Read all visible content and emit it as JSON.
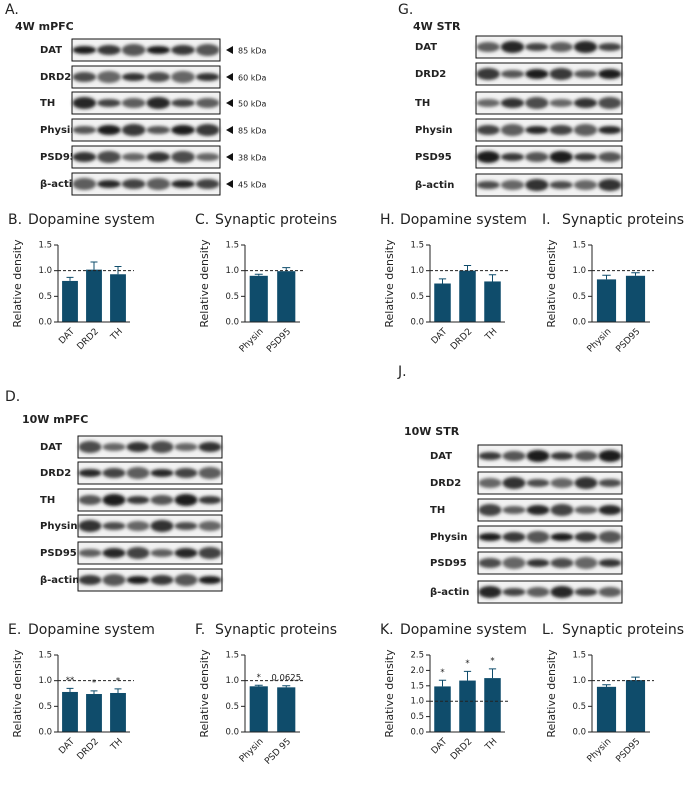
{
  "blots": [
    {
      "panel": "A.",
      "title": "4W mPFC",
      "rows": [
        {
          "label": "DAT",
          "size": "85 kDa"
        },
        {
          "label": "DRD2",
          "size": "60 kDa"
        },
        {
          "label": "TH",
          "size": "50 kDa"
        },
        {
          "label": "Physin",
          "size": "85 kDa"
        },
        {
          "label": "PSD95",
          "size": "38 kDa"
        },
        {
          "label": "β-actin",
          "size": "45 kDa"
        }
      ]
    },
    {
      "panel": "G.",
      "title": "4W STR",
      "rows": [
        {
          "label": "DAT"
        },
        {
          "label": "DRD2"
        },
        {
          "label": "TH"
        },
        {
          "label": "Physin"
        },
        {
          "label": "PSD95"
        },
        {
          "label": "β-actin"
        }
      ]
    },
    {
      "panel": "D.",
      "title": "10W mPFC",
      "rows": [
        {
          "label": "DAT"
        },
        {
          "label": "DRD2"
        },
        {
          "label": "TH"
        },
        {
          "label": "Physin"
        },
        {
          "label": "PSD95"
        },
        {
          "label": "β-actin"
        }
      ]
    },
    {
      "panel": "J.",
      "title": "10W STR",
      "rows": [
        {
          "label": "DAT"
        },
        {
          "label": "DRD2"
        },
        {
          "label": "TH"
        },
        {
          "label": "Physin"
        },
        {
          "label": "PSD95"
        },
        {
          "label": "β-actin"
        }
      ]
    }
  ],
  "chart_data": [
    {
      "type": "bar",
      "panel": "B.",
      "title": "Dopamine system",
      "y_label": "Relative density",
      "color": "#0f4c6b",
      "categories": [
        "DAT",
        "DRD2",
        "TH"
      ],
      "values": [
        0.8,
        1.02,
        0.93
      ],
      "errors": [
        0.07,
        0.15,
        0.15
      ],
      "reference_line": 1,
      "ylim": [
        0,
        1.5
      ],
      "yticks": [
        {
          "value": 0,
          "label": "0.0"
        },
        {
          "value": 0.5,
          "label": "0.5"
        },
        {
          "value": 1,
          "label": "1.0"
        },
        {
          "value": 1.5,
          "label": "1.5"
        }
      ]
    },
    {
      "type": "bar",
      "panel": "C.",
      "title": "Synaptic proteins",
      "y_label": "Relative density",
      "color": "#0f4c6b",
      "categories": [
        "Physin",
        "PSD95"
      ],
      "values": [
        0.9,
        0.99
      ],
      "errors": [
        0.03,
        0.07
      ],
      "reference_line": 1,
      "ylim": [
        0,
        1.5
      ],
      "yticks": [
        {
          "value": 0,
          "label": "0.0"
        },
        {
          "value": 0.5,
          "label": "0.5"
        },
        {
          "value": 1,
          "label": "1.0"
        },
        {
          "value": 1.5,
          "label": "1.5"
        }
      ]
    },
    {
      "type": "bar",
      "panel": "H.",
      "title": "Dopamine system",
      "y_label": "Relative density",
      "color": "#0f4c6b",
      "categories": [
        "DAT",
        "DRD2",
        "TH"
      ],
      "values": [
        0.75,
        1.0,
        0.79
      ],
      "errors": [
        0.09,
        0.1,
        0.13
      ],
      "reference_line": 1,
      "ylim": [
        0,
        1.5
      ],
      "yticks": [
        {
          "value": 0,
          "label": "0.0"
        },
        {
          "value": 0.5,
          "label": "0.5"
        },
        {
          "value": 1,
          "label": "1.0"
        },
        {
          "value": 1.5,
          "label": "1.5"
        }
      ]
    },
    {
      "type": "bar",
      "panel": "I.",
      "title": "Synaptic proteins",
      "y_label": "Relative density",
      "color": "#0f4c6b",
      "categories": [
        "Physin",
        "PSD95"
      ],
      "values": [
        0.83,
        0.9
      ],
      "errors": [
        0.08,
        0.06
      ],
      "reference_line": 1,
      "ylim": [
        0,
        1.5
      ],
      "yticks": [
        {
          "value": 0,
          "label": "0.0"
        },
        {
          "value": 0.5,
          "label": "0.5"
        },
        {
          "value": 1,
          "label": "1.0"
        },
        {
          "value": 1.5,
          "label": "1.5"
        }
      ]
    },
    {
      "type": "bar",
      "panel": "E.",
      "title": "Dopamine system",
      "y_label": "Relative density",
      "color": "#0f4c6b",
      "categories": [
        "DAT",
        "DRD2",
        "TH"
      ],
      "values": [
        0.78,
        0.74,
        0.76
      ],
      "errors": [
        0.07,
        0.06,
        0.08
      ],
      "annotations": [
        "**",
        "*",
        "*"
      ],
      "reference_line": 1,
      "ylim": [
        0,
        1.5
      ],
      "yticks": [
        {
          "value": 0,
          "label": "0.0"
        },
        {
          "value": 0.5,
          "label": "0.5"
        },
        {
          "value": 1,
          "label": "1.0"
        },
        {
          "value": 1.5,
          "label": "1.5"
        }
      ]
    },
    {
      "type": "bar",
      "panel": "F.",
      "title": "Synaptic proteins",
      "y_label": "Relative density",
      "color": "#0f4c6b",
      "categories": [
        "Physin",
        "PSD 95"
      ],
      "values": [
        0.89,
        0.87
      ],
      "errors": [
        0.02,
        0.03
      ],
      "annotations": [
        "*",
        "0.0625"
      ],
      "reference_line": 1,
      "ylim": [
        0,
        1.5
      ],
      "yticks": [
        {
          "value": 0,
          "label": "0.0"
        },
        {
          "value": 0.5,
          "label": "0.5"
        },
        {
          "value": 1,
          "label": "1.0"
        },
        {
          "value": 1.5,
          "label": "1.5"
        }
      ]
    },
    {
      "type": "bar",
      "panel": "K.",
      "title": "Dopamine system",
      "y_label": "Relative density",
      "color": "#0f4c6b",
      "categories": [
        "DAT",
        "DRD2",
        "TH"
      ],
      "values": [
        1.48,
        1.67,
        1.75
      ],
      "errors": [
        0.2,
        0.3,
        0.3
      ],
      "annotations": [
        "*",
        "*",
        "*"
      ],
      "reference_line": 1,
      "ylim": [
        0,
        2.5
      ],
      "yticks": [
        {
          "value": 0,
          "label": "0.0"
        },
        {
          "value": 0.5,
          "label": "0.5"
        },
        {
          "value": 1,
          "label": "1.0"
        },
        {
          "value": 1.5,
          "label": "1.5"
        },
        {
          "value": 2,
          "label": "2.0"
        },
        {
          "value": 2.5,
          "label": "2.5"
        }
      ]
    },
    {
      "type": "bar",
      "panel": "L.",
      "title": "Synaptic proteins",
      "y_label": "Relative density",
      "color": "#0f4c6b",
      "categories": [
        "Physin",
        "PSD95"
      ],
      "values": [
        0.88,
        1.01
      ],
      "errors": [
        0.04,
        0.06
      ],
      "reference_line": 1,
      "ylim": [
        0,
        1.5
      ],
      "yticks": [
        {
          "value": 0,
          "label": "0.0"
        },
        {
          "value": 0.5,
          "label": "0.5"
        },
        {
          "value": 1,
          "label": "1.0"
        },
        {
          "value": 1.5,
          "label": "1.5"
        }
      ]
    }
  ]
}
